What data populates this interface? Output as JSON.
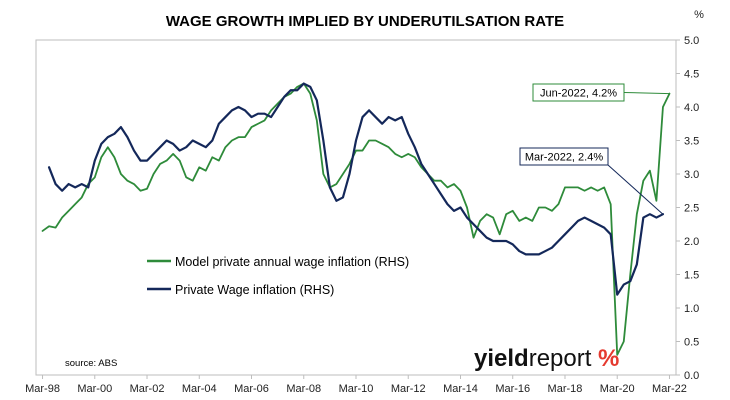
{
  "chart_data": {
    "type": "line",
    "title": "WAGE GROWTH IMPLIED BY UNDERUTILSATION RATE",
    "y_unit": "%",
    "y_axis_side": "right",
    "ylim": [
      0.0,
      5.0
    ],
    "y_ticks": [
      "0.0",
      "0.5",
      "1.0",
      "1.5",
      "2.0",
      "2.5",
      "3.0",
      "3.5",
      "4.0",
      "4.5",
      "5.0"
    ],
    "x_range": [
      1998.0,
      2022.5
    ],
    "x_ticks": [
      "Mar-98",
      "Mar-00",
      "Mar-02",
      "Mar-04",
      "Mar-06",
      "Mar-08",
      "Mar-10",
      "Mar-12",
      "Mar-14",
      "Mar-16",
      "Mar-18",
      "Mar-20",
      "Mar-22"
    ],
    "grid": false,
    "legend_placement": "middle-left",
    "series": [
      {
        "name": "Model private annual wage inflation (RHS)",
        "color": "#2e8b3a",
        "points": [
          [
            1998.25,
            2.15
          ],
          [
            1998.5,
            2.22
          ],
          [
            1998.75,
            2.2
          ],
          [
            1999.0,
            2.35
          ],
          [
            1999.25,
            2.45
          ],
          [
            1999.5,
            2.55
          ],
          [
            1999.75,
            2.65
          ],
          [
            2000.0,
            2.85
          ],
          [
            2000.25,
            2.95
          ],
          [
            2000.5,
            3.25
          ],
          [
            2000.75,
            3.4
          ],
          [
            2001.0,
            3.25
          ],
          [
            2001.25,
            3.0
          ],
          [
            2001.5,
            2.9
          ],
          [
            2001.75,
            2.85
          ],
          [
            2002.0,
            2.75
          ],
          [
            2002.25,
            2.78
          ],
          [
            2002.5,
            3.0
          ],
          [
            2002.75,
            3.15
          ],
          [
            2003.0,
            3.2
          ],
          [
            2003.25,
            3.3
          ],
          [
            2003.5,
            3.2
          ],
          [
            2003.75,
            2.95
          ],
          [
            2004.0,
            2.9
          ],
          [
            2004.25,
            3.1
          ],
          [
            2004.5,
            3.05
          ],
          [
            2004.75,
            3.25
          ],
          [
            2005.0,
            3.2
          ],
          [
            2005.25,
            3.4
          ],
          [
            2005.5,
            3.5
          ],
          [
            2005.75,
            3.55
          ],
          [
            2006.0,
            3.55
          ],
          [
            2006.25,
            3.7
          ],
          [
            2006.5,
            3.75
          ],
          [
            2006.75,
            3.8
          ],
          [
            2007.0,
            3.95
          ],
          [
            2007.25,
            4.05
          ],
          [
            2007.5,
            4.15
          ],
          [
            2007.75,
            4.2
          ],
          [
            2008.0,
            4.3
          ],
          [
            2008.25,
            4.35
          ],
          [
            2008.5,
            4.2
          ],
          [
            2008.75,
            3.8
          ],
          [
            2009.0,
            3.0
          ],
          [
            2009.25,
            2.8
          ],
          [
            2009.5,
            2.85
          ],
          [
            2009.75,
            3.0
          ],
          [
            2010.0,
            3.15
          ],
          [
            2010.25,
            3.35
          ],
          [
            2010.5,
            3.35
          ],
          [
            2010.75,
            3.5
          ],
          [
            2011.0,
            3.5
          ],
          [
            2011.25,
            3.45
          ],
          [
            2011.5,
            3.4
          ],
          [
            2011.75,
            3.3
          ],
          [
            2012.0,
            3.25
          ],
          [
            2012.25,
            3.3
          ],
          [
            2012.5,
            3.25
          ],
          [
            2012.75,
            3.1
          ],
          [
            2013.0,
            3.0
          ],
          [
            2013.25,
            2.9
          ],
          [
            2013.5,
            2.9
          ],
          [
            2013.75,
            2.8
          ],
          [
            2014.0,
            2.85
          ],
          [
            2014.25,
            2.75
          ],
          [
            2014.5,
            2.5
          ],
          [
            2014.75,
            2.05
          ],
          [
            2015.0,
            2.3
          ],
          [
            2015.25,
            2.4
          ],
          [
            2015.5,
            2.35
          ],
          [
            2015.75,
            2.1
          ],
          [
            2016.0,
            2.4
          ],
          [
            2016.25,
            2.45
          ],
          [
            2016.5,
            2.3
          ],
          [
            2016.75,
            2.35
          ],
          [
            2017.0,
            2.3
          ],
          [
            2017.25,
            2.5
          ],
          [
            2017.5,
            2.5
          ],
          [
            2017.75,
            2.45
          ],
          [
            2018.0,
            2.55
          ],
          [
            2018.25,
            2.8
          ],
          [
            2018.5,
            2.8
          ],
          [
            2018.75,
            2.8
          ],
          [
            2019.0,
            2.75
          ],
          [
            2019.25,
            2.8
          ],
          [
            2019.5,
            2.75
          ],
          [
            2019.75,
            2.8
          ],
          [
            2020.0,
            2.55
          ],
          [
            2020.25,
            0.3
          ],
          [
            2020.5,
            0.5
          ],
          [
            2020.75,
            1.5
          ],
          [
            2021.0,
            2.4
          ],
          [
            2021.25,
            2.9
          ],
          [
            2021.5,
            3.05
          ],
          [
            2021.75,
            2.6
          ],
          [
            2022.0,
            4.0
          ],
          [
            2022.25,
            4.2
          ]
        ]
      },
      {
        "name": "Private Wage inflation (RHS)",
        "color": "#14285a",
        "points": [
          [
            1998.5,
            3.1
          ],
          [
            1998.75,
            2.85
          ],
          [
            1999.0,
            2.75
          ],
          [
            1999.25,
            2.85
          ],
          [
            1999.5,
            2.8
          ],
          [
            1999.75,
            2.85
          ],
          [
            2000.0,
            2.8
          ],
          [
            2000.25,
            3.2
          ],
          [
            2000.5,
            3.45
          ],
          [
            2000.75,
            3.55
          ],
          [
            2001.0,
            3.6
          ],
          [
            2001.25,
            3.7
          ],
          [
            2001.5,
            3.55
          ],
          [
            2001.75,
            3.35
          ],
          [
            2002.0,
            3.2
          ],
          [
            2002.25,
            3.2
          ],
          [
            2002.5,
            3.3
          ],
          [
            2002.75,
            3.4
          ],
          [
            2003.0,
            3.5
          ],
          [
            2003.25,
            3.45
          ],
          [
            2003.5,
            3.35
          ],
          [
            2003.75,
            3.4
          ],
          [
            2004.0,
            3.5
          ],
          [
            2004.25,
            3.45
          ],
          [
            2004.5,
            3.4
          ],
          [
            2004.75,
            3.5
          ],
          [
            2005.0,
            3.75
          ],
          [
            2005.25,
            3.85
          ],
          [
            2005.5,
            3.95
          ],
          [
            2005.75,
            4.0
          ],
          [
            2006.0,
            3.95
          ],
          [
            2006.25,
            3.85
          ],
          [
            2006.5,
            3.9
          ],
          [
            2006.75,
            3.9
          ],
          [
            2007.0,
            3.85
          ],
          [
            2007.25,
            4.0
          ],
          [
            2007.5,
            4.15
          ],
          [
            2007.75,
            4.25
          ],
          [
            2008.0,
            4.25
          ],
          [
            2008.25,
            4.35
          ],
          [
            2008.5,
            4.3
          ],
          [
            2008.75,
            4.1
          ],
          [
            2009.0,
            3.5
          ],
          [
            2009.25,
            2.8
          ],
          [
            2009.5,
            2.6
          ],
          [
            2009.75,
            2.65
          ],
          [
            2010.0,
            3.0
          ],
          [
            2010.25,
            3.5
          ],
          [
            2010.5,
            3.85
          ],
          [
            2010.75,
            3.95
          ],
          [
            2011.0,
            3.85
          ],
          [
            2011.25,
            3.75
          ],
          [
            2011.5,
            3.85
          ],
          [
            2011.75,
            3.8
          ],
          [
            2012.0,
            3.85
          ],
          [
            2012.25,
            3.6
          ],
          [
            2012.5,
            3.4
          ],
          [
            2012.75,
            3.15
          ],
          [
            2013.0,
            3.0
          ],
          [
            2013.25,
            2.85
          ],
          [
            2013.5,
            2.7
          ],
          [
            2013.75,
            2.55
          ],
          [
            2014.0,
            2.45
          ],
          [
            2014.25,
            2.5
          ],
          [
            2014.5,
            2.35
          ],
          [
            2014.75,
            2.25
          ],
          [
            2015.0,
            2.15
          ],
          [
            2015.25,
            2.05
          ],
          [
            2015.5,
            2.0
          ],
          [
            2015.75,
            2.0
          ],
          [
            2016.0,
            2.0
          ],
          [
            2016.25,
            1.95
          ],
          [
            2016.5,
            1.85
          ],
          [
            2016.75,
            1.8
          ],
          [
            2017.0,
            1.8
          ],
          [
            2017.25,
            1.8
          ],
          [
            2017.5,
            1.85
          ],
          [
            2017.75,
            1.9
          ],
          [
            2018.0,
            2.0
          ],
          [
            2018.25,
            2.1
          ],
          [
            2018.5,
            2.2
          ],
          [
            2018.75,
            2.3
          ],
          [
            2019.0,
            2.35
          ],
          [
            2019.25,
            2.3
          ],
          [
            2019.5,
            2.25
          ],
          [
            2019.75,
            2.2
          ],
          [
            2020.0,
            2.1
          ],
          [
            2020.25,
            1.2
          ],
          [
            2020.5,
            1.35
          ],
          [
            2020.75,
            1.4
          ],
          [
            2021.0,
            1.65
          ],
          [
            2021.25,
            2.35
          ],
          [
            2021.5,
            2.4
          ],
          [
            2021.75,
            2.35
          ],
          [
            2022.0,
            2.4
          ]
        ]
      }
    ],
    "annotations": [
      {
        "text": "Jun-2022, 4.2%",
        "x": 2022.25,
        "y": 4.2,
        "series": 0
      },
      {
        "text": "Mar-2022, 2.4%",
        "x": 2022.0,
        "y": 2.4,
        "series": 1
      }
    ],
    "source": "source: ABS"
  },
  "logo": {
    "word_bold": "yield",
    "word_regular": "report",
    "mark": "%"
  }
}
